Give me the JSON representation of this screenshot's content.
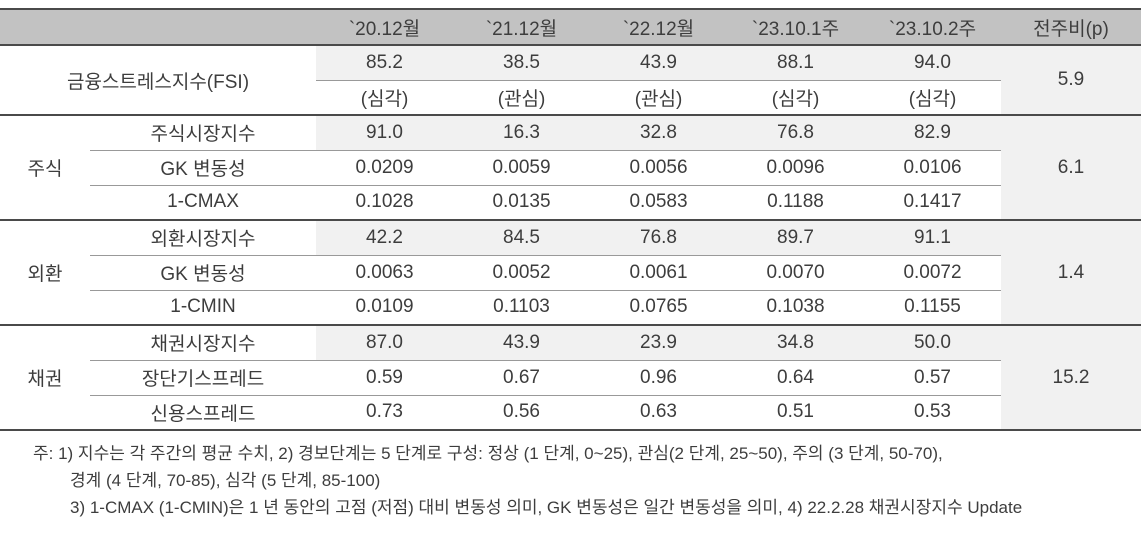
{
  "table": {
    "columns": [
      "`20.12월",
      "`21.12월",
      "`22.12월",
      "`23.10.1주",
      "`23.10.2주",
      "전주비(p)"
    ],
    "fsi": {
      "label": "금융스트레스지수(FSI)",
      "values": [
        "85.2",
        "38.5",
        "43.9",
        "88.1",
        "94.0"
      ],
      "grades": [
        "(심각)",
        "(관심)",
        "(관심)",
        "(심각)",
        "(심각)"
      ],
      "wow": "5.9"
    },
    "sections": [
      {
        "category": "주식",
        "wow": "6.1",
        "rows": [
          {
            "label": "주식시장지수",
            "values": [
              "91.0",
              "16.3",
              "32.8",
              "76.8",
              "82.9"
            ]
          },
          {
            "label": "GK 변동성",
            "values": [
              "0.0209",
              "0.0059",
              "0.0056",
              "0.0096",
              "0.0106"
            ]
          },
          {
            "label": "1-CMAX",
            "values": [
              "0.1028",
              "0.0135",
              "0.0583",
              "0.1188",
              "0.1417"
            ]
          }
        ]
      },
      {
        "category": "외환",
        "wow": "1.4",
        "rows": [
          {
            "label": "외환시장지수",
            "values": [
              "42.2",
              "84.5",
              "76.8",
              "89.7",
              "91.1"
            ]
          },
          {
            "label": "GK 변동성",
            "values": [
              "0.0063",
              "0.0052",
              "0.0061",
              "0.0070",
              "0.0072"
            ]
          },
          {
            "label": "1-CMIN",
            "values": [
              "0.0109",
              "0.1103",
              "0.0765",
              "0.1038",
              "0.1155"
            ]
          }
        ]
      },
      {
        "category": "채권",
        "wow": "15.2",
        "rows": [
          {
            "label": "채권시장지수",
            "values": [
              "87.0",
              "43.9",
              "23.9",
              "34.8",
              "50.0"
            ]
          },
          {
            "label": "장단기스프레드",
            "values": [
              "0.59",
              "0.67",
              "0.96",
              "0.64",
              "0.57"
            ]
          },
          {
            "label": "신용스프레드",
            "values": [
              "0.73",
              "0.56",
              "0.63",
              "0.51",
              "0.53"
            ]
          }
        ]
      }
    ]
  },
  "footnotes": [
    "주: 1) 지수는 각 주간의 평균 수치, 2) 경보단계는 5 단계로 구성: 정상 (1 단계, 0~25), 관심(2 단계, 25~50), 주의 (3 단계, 50-70),",
    "경계 (4 단계, 70-85), 심각 (5 단계, 85-100)",
    "3) 1-CMAX (1-CMIN)은 1 년 동안의 고점 (저점) 대비 변동성 의미, GK 변동성은 일간 변동성을 의미, 4) 22.2.28 채권시장지수 Update"
  ],
  "colors": {
    "header_bg": "#c2c2c2",
    "highlight_bg": "#f1f1f1",
    "line_dark": "#4a4a4a",
    "line_gray": "#999999",
    "text": "#3d3d3d"
  }
}
